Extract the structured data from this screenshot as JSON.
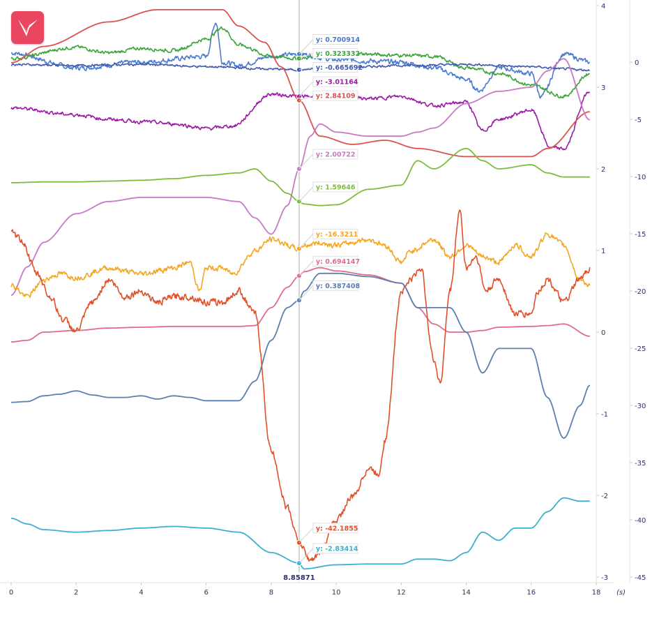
{
  "app": {
    "logo_icon": "app-logo-icon"
  },
  "colors": {
    "axis_text": "#2d2f6b",
    "grid": "#e6e6e6",
    "cursor": "#d3d3d3",
    "logo_bg": "#e9465f"
  },
  "chart_data": {
    "type": "line",
    "x_unit": "(s)",
    "x_range": [
      0,
      17.8
    ],
    "x_ticks": [
      "0",
      "2",
      "4",
      "6",
      "8",
      "10",
      "12",
      "14",
      "16",
      "18"
    ],
    "axes": [
      {
        "id": "left",
        "ticks": [
          "4",
          "3",
          "2",
          "1",
          "0",
          "-1",
          "-2",
          "-3"
        ],
        "range": [
          -3,
          4
        ]
      },
      {
        "id": "right",
        "ticks": [
          "0",
          "-5",
          "-10",
          "-15",
          "-20",
          "-25",
          "-30",
          "-35",
          "-40",
          "-45"
        ],
        "range": [
          -45,
          5
        ]
      }
    ],
    "cursor": {
      "x": 8.85871,
      "label": "8.85871"
    },
    "tooltips": [
      {
        "label": "y: 0.700914",
        "color": "#4a7bd0"
      },
      {
        "label": "y: 0.323332",
        "color": "#3aa63a"
      },
      {
        "label": "y: -0.665692",
        "color": "#3f58b0"
      },
      {
        "label": "y: -3.01164",
        "color": "#9c1aa6"
      },
      {
        "label": "y: 2.84109",
        "color": "#d9534f"
      },
      {
        "label": "y: 2.00722",
        "color": "#c47bc4"
      },
      {
        "label": "y: 1.59646",
        "color": "#7cbd3c"
      },
      {
        "label": "y: -16.3211",
        "color": "#f5a623"
      },
      {
        "label": "y: 0.694147",
        "color": "#e06b8e"
      },
      {
        "label": "y: 0.387408",
        "color": "#5b7fae"
      },
      {
        "label": "y: -42.1855",
        "color": "#e0502a"
      },
      {
        "label": "y: -2.83414",
        "color": "#3bb1cf"
      }
    ],
    "series": [
      {
        "color": "#4a7bd0",
        "axis": "right",
        "noise": 0.35,
        "x": [
          0,
          2,
          4,
          6,
          6.3,
          6.5,
          7,
          8,
          8.86,
          10,
          12,
          13,
          14,
          14.4,
          15,
          16,
          16.3,
          17,
          17.8
        ],
        "y": [
          0.8,
          -0.5,
          0,
          0.5,
          3.5,
          0,
          -0.3,
          0.5,
          0.7,
          0.2,
          0,
          -0.5,
          -1.5,
          -2.5,
          -0.5,
          -1,
          -3,
          0.7,
          0
        ]
      },
      {
        "color": "#3aa63a",
        "axis": "right",
        "noise": 0.25,
        "x": [
          0,
          2,
          3,
          4,
          5,
          6,
          6.5,
          7,
          8,
          8.86,
          10,
          12,
          13,
          14,
          15,
          16,
          17,
          17.8
        ],
        "y": [
          0.3,
          1.3,
          0.8,
          1.2,
          1,
          2,
          3,
          1.5,
          0.5,
          0.32,
          0.8,
          0.6,
          0.5,
          -0.5,
          -1,
          -2,
          -3,
          -1
        ]
      },
      {
        "color": "#3f58b0",
        "axis": "right",
        "noise": 0.15,
        "x": [
          0,
          2,
          4,
          6,
          8,
          8.86,
          10,
          12,
          14,
          16,
          17,
          17.8
        ],
        "y": [
          -0.2,
          -0.3,
          -0.2,
          -0.4,
          -0.6,
          -0.67,
          -0.5,
          -0.3,
          -0.2,
          -0.4,
          -0.6,
          -0.7
        ]
      },
      {
        "color": "#9c1aa6",
        "axis": "right",
        "noise": 0.25,
        "x": [
          0,
          2,
          3,
          4,
          5,
          6,
          6.8,
          8,
          8.86,
          10,
          11,
          12,
          13,
          14,
          14.5,
          15,
          16,
          16.6,
          17,
          17.8
        ],
        "y": [
          -4,
          -4.6,
          -5,
          -5.2,
          -5.4,
          -5.8,
          -5.6,
          -2.8,
          -3,
          -3,
          -3.2,
          -3,
          -3.8,
          -3.5,
          -6,
          -5,
          -4.2,
          -7.5,
          -7.6,
          -2.5
        ]
      },
      {
        "color": "#d9534f",
        "axis": "left",
        "x": [
          0,
          1,
          3,
          4.5,
          6.5,
          7,
          7.8,
          8.3,
          8.86,
          9.5,
          10.5,
          11.5,
          12.5,
          14,
          14.5,
          15,
          16,
          16.5,
          17.8
        ],
        "y": [
          3.3,
          3.5,
          3.8,
          3.95,
          3.95,
          3.75,
          3.55,
          3.25,
          2.84,
          2.4,
          2.3,
          2.35,
          2.25,
          2.15,
          2.15,
          2.15,
          2.15,
          2.25,
          2.7
        ]
      },
      {
        "color": "#c47bc4",
        "axis": "left",
        "x": [
          0,
          0.5,
          1,
          2,
          3,
          4,
          5,
          6,
          7,
          7.5,
          8,
          8.5,
          8.86,
          9.2,
          9.5,
          10,
          11,
          12,
          12.5,
          13,
          14,
          15,
          16,
          16.5,
          17,
          17.8
        ],
        "y": [
          0.45,
          0.8,
          1.1,
          1.45,
          1.6,
          1.65,
          1.65,
          1.65,
          1.6,
          1.4,
          1.2,
          1.55,
          2.0,
          2.4,
          2.55,
          2.45,
          2.4,
          2.4,
          2.45,
          2.5,
          2.8,
          2.95,
          3.0,
          3.2,
          3.35,
          2.6
        ]
      },
      {
        "color": "#7cbd3c",
        "axis": "left",
        "x": [
          0,
          1,
          2,
          3,
          4,
          5,
          6,
          7,
          7.5,
          8,
          8.5,
          8.86,
          9,
          9.5,
          10,
          11,
          12,
          12.5,
          13,
          14,
          14.5,
          15,
          16,
          16.5,
          17,
          17.8
        ],
        "y": [
          1.83,
          1.84,
          1.84,
          1.85,
          1.86,
          1.88,
          1.92,
          1.95,
          2.0,
          1.85,
          1.7,
          1.6,
          1.57,
          1.55,
          1.56,
          1.75,
          1.8,
          2.1,
          2.0,
          2.25,
          2.1,
          2.0,
          2.05,
          1.95,
          1.9,
          1.9
        ]
      },
      {
        "color": "#f5a623",
        "axis": "right",
        "noise": 0.4,
        "x": [
          0,
          0.5,
          1,
          1.5,
          2,
          3,
          4,
          5,
          5.5,
          5.8,
          6,
          6.5,
          6.8,
          7.5,
          8,
          8.86,
          9,
          9.5,
          10,
          11,
          11.5,
          12,
          12.3,
          13,
          13.5,
          14,
          14.5,
          15,
          15.5,
          16,
          16.5,
          17,
          17.5,
          17.8
        ],
        "y": [
          -19.5,
          -20.5,
          -19,
          -18.5,
          -18.8,
          -18,
          -18.5,
          -18,
          -17.5,
          -20,
          -18,
          -18,
          -18.5,
          -16.5,
          -15.5,
          -16.3,
          -16,
          -15.8,
          -16,
          -15.5,
          -16,
          -17.5,
          -16.5,
          -15.5,
          -17,
          -16,
          -17,
          -17.5,
          -16,
          -17,
          -15,
          -16,
          -19,
          -19.5
        ]
      },
      {
        "color": "#e06b8e",
        "axis": "left",
        "x": [
          0,
          0.5,
          1,
          2,
          3,
          4,
          5,
          6,
          7,
          7.5,
          8,
          8.5,
          8.86,
          9,
          9.5,
          10,
          11,
          12,
          12.5,
          13,
          13.5,
          14,
          14.5,
          15,
          16,
          16.5,
          17,
          17.8
        ],
        "y": [
          -0.12,
          -0.1,
          0,
          0.02,
          0.05,
          0.06,
          0.07,
          0.07,
          0.07,
          0.08,
          0.3,
          0.55,
          0.69,
          0.74,
          0.79,
          0.75,
          0.7,
          0.6,
          0.3,
          0.1,
          0.0,
          0.0,
          0.02,
          0.06,
          0.07,
          0.08,
          0.1,
          -0.05
        ]
      },
      {
        "color": "#5b7fae",
        "axis": "left",
        "x": [
          0,
          0.5,
          1,
          1.5,
          2,
          2.5,
          3,
          3.5,
          4,
          4.5,
          5,
          5.5,
          6,
          7,
          7.5,
          8,
          8.5,
          8.86,
          9,
          9.5,
          10,
          11,
          12,
          12.5,
          13,
          13.5,
          14,
          14.5,
          15,
          15.5,
          16,
          16.5,
          17,
          17.5,
          17.8
        ],
        "y": [
          -0.86,
          -0.85,
          -0.78,
          -0.76,
          -0.72,
          -0.77,
          -0.8,
          -0.8,
          -0.78,
          -0.82,
          -0.78,
          -0.8,
          -0.84,
          -0.84,
          -0.6,
          -0.1,
          0.3,
          0.39,
          0.5,
          0.72,
          0.72,
          0.68,
          0.6,
          0.3,
          0.3,
          0.3,
          0.0,
          -0.5,
          -0.2,
          -0.2,
          -0.2,
          -0.8,
          -1.3,
          -0.9,
          -0.65
        ]
      },
      {
        "color": "#e0502a",
        "axis": "right",
        "noise": 0.5,
        "x": [
          0,
          0.3,
          0.8,
          1.2,
          1.6,
          2,
          2.5,
          3,
          3.5,
          4,
          4.5,
          5,
          5.5,
          6,
          6.5,
          7,
          7.5,
          8,
          8.5,
          8.86,
          9.2,
          9.5,
          10,
          10.5,
          11,
          11.3,
          11.5,
          12,
          12.3,
          12.6,
          13,
          13.2,
          13.5,
          13.8,
          14,
          14.3,
          14.6,
          15,
          15.5,
          16,
          16.2,
          16.5,
          17,
          17.5,
          17.8
        ],
        "y": [
          -15,
          -15.5,
          -18.5,
          -20.5,
          -22.5,
          -23.5,
          -21,
          -19,
          -20.5,
          -20,
          -21,
          -20.5,
          -20.5,
          -21,
          -21,
          -20,
          -22,
          -34,
          -39,
          -42,
          -43.5,
          -43,
          -40,
          -38,
          -35.5,
          -36,
          -33,
          -20,
          -19,
          -18,
          -26,
          -28,
          -20,
          -13,
          -18,
          -17,
          -20,
          -19,
          -22,
          -22,
          -20,
          -19,
          -21,
          -19,
          -18
        ]
      },
      {
        "color": "#3bb1cf",
        "axis": "left",
        "x": [
          0,
          0.5,
          1,
          2,
          3,
          4,
          5,
          6,
          7,
          8,
          8.86,
          9,
          10,
          11,
          12,
          12.5,
          13,
          13.5,
          14,
          14.5,
          15,
          15.5,
          16,
          16.5,
          17,
          17.5,
          17.8
        ],
        "y": [
          -2.28,
          -2.35,
          -2.42,
          -2.45,
          -2.43,
          -2.4,
          -2.38,
          -2.4,
          -2.45,
          -2.7,
          -2.83,
          -2.9,
          -2.85,
          -2.84,
          -2.84,
          -2.78,
          -2.78,
          -2.8,
          -2.7,
          -2.45,
          -2.55,
          -2.4,
          -2.4,
          -2.2,
          -2.03,
          -2.07,
          -2.07
        ]
      }
    ]
  }
}
